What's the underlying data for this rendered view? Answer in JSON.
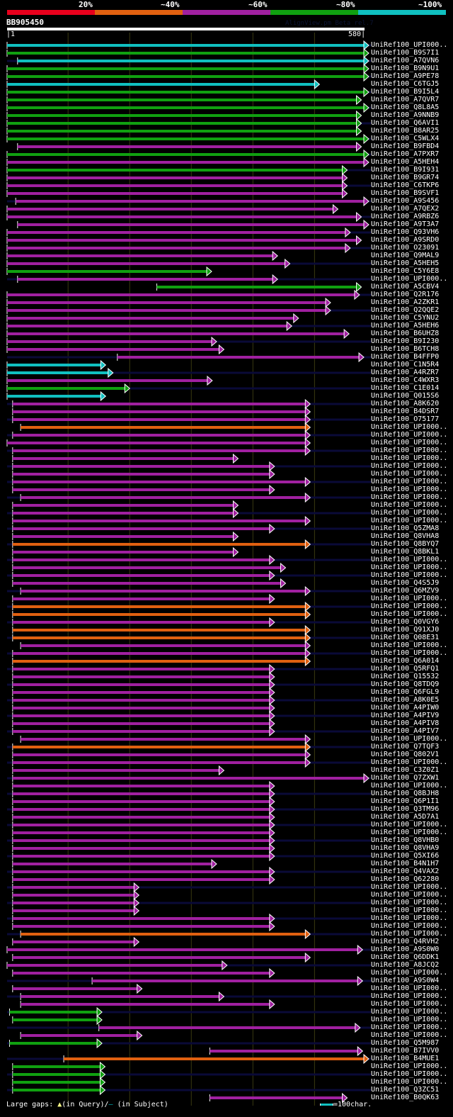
{
  "header": {
    "identity_legend": [
      {
        "label": "20%",
        "color": "#e8001c"
      },
      {
        "label": "~40%",
        "color": "#e06010"
      },
      {
        "label": "~60%",
        "color": "#a020a0"
      },
      {
        "label": "~80%",
        "color": "#10a010"
      },
      {
        "label": "~100%",
        "color": "#10c0c0"
      }
    ],
    "query_name": "BB905450",
    "credit": "AlignView.pm Beta rel.7",
    "query_start": "1",
    "query_end": "580"
  },
  "footer": {
    "gaps_prefix": "Large gaps:",
    "gap_query_symbol": "▲",
    "gap_query_text": "(in Query)/",
    "gap_subject_symbol": "–",
    "gap_subject_text": " (in Subject)",
    "scale_text": "=100char."
  },
  "chart_data": {
    "type": "alignment-overview",
    "title": "BB905450",
    "xlabel": "Query position",
    "xlim": [
      1,
      580
    ],
    "gridlines": [
      100,
      200,
      300,
      400,
      500
    ],
    "color_bins": {
      "r": "20%",
      "o": "~40%",
      "p": "~60%",
      "g": "~80%",
      "c": "~100%"
    },
    "hits": [
      {
        "name": "UniRef100_UPI000..",
        "start": 1,
        "end": 580,
        "id": "c"
      },
      {
        "name": "UniRef100_B9S7I1",
        "start": 1,
        "end": 580,
        "id": "g"
      },
      {
        "name": "UniRef100_A7QVN6",
        "start": 18,
        "end": 580,
        "id": "c"
      },
      {
        "name": "UniRef100_B9N9U1",
        "start": 1,
        "end": 580,
        "id": "g"
      },
      {
        "name": "UniRef100_A9PE78",
        "start": 1,
        "end": 580,
        "id": "g"
      },
      {
        "name": "UniRef100_C6TGJ5",
        "start": 1,
        "end": 500,
        "id": "c"
      },
      {
        "name": "UniRef100_B9I5L4",
        "start": 1,
        "end": 580,
        "id": "g"
      },
      {
        "name": "UniRef100_A7QVR7",
        "start": 1,
        "end": 568,
        "id": "g"
      },
      {
        "name": "UniRef100_Q8L8A5",
        "start": 1,
        "end": 580,
        "id": "g"
      },
      {
        "name": "UniRef100_A9NNB9",
        "start": 1,
        "end": 568,
        "id": "g"
      },
      {
        "name": "UniRef100_Q6AVI1",
        "start": 1,
        "end": 568,
        "id": "g"
      },
      {
        "name": "UniRef100_B8AR25",
        "start": 1,
        "end": 568,
        "id": "g"
      },
      {
        "name": "UniRef100_C5WLX4",
        "start": 1,
        "end": 580,
        "id": "g"
      },
      {
        "name": "UniRef100_B9FBD4",
        "start": 18,
        "end": 568,
        "id": "p"
      },
      {
        "name": "UniRef100_A7PXR7",
        "start": 1,
        "end": 580,
        "id": "g"
      },
      {
        "name": "UniRef100_A5HEH4",
        "start": 1,
        "end": 580,
        "id": "p"
      },
      {
        "name": "UniRef100_B9I931",
        "start": 1,
        "end": 545,
        "id": "g"
      },
      {
        "name": "UniRef100_B9GR74",
        "start": 1,
        "end": 545,
        "id": "p"
      },
      {
        "name": "UniRef100_C6TKP6",
        "start": 1,
        "end": 545,
        "id": "p"
      },
      {
        "name": "UniRef100_B9SVF1",
        "start": 1,
        "end": 545,
        "id": "p"
      },
      {
        "name": "UniRef100_A9S456",
        "start": 15,
        "end": 580,
        "id": "p"
      },
      {
        "name": "UniRef100_A7QEX2",
        "start": 1,
        "end": 530,
        "id": "p"
      },
      {
        "name": "UniRef100_A9RBZ6",
        "start": 1,
        "end": 568,
        "id": "p"
      },
      {
        "name": "UniRef100_A9T3A7",
        "start": 18,
        "end": 580,
        "id": "p"
      },
      {
        "name": "UniRef100_Q93VH6",
        "start": 1,
        "end": 550,
        "id": "p"
      },
      {
        "name": "UniRef100_A9SRD0",
        "start": 1,
        "end": 568,
        "id": "p"
      },
      {
        "name": "UniRef100_O23091",
        "start": 1,
        "end": 550,
        "id": "p"
      },
      {
        "name": "UniRef100_Q9MAL9",
        "start": 1,
        "end": 432,
        "id": "p"
      },
      {
        "name": "UniRef100_A5HEH5",
        "start": 1,
        "end": 452,
        "id": "p"
      },
      {
        "name": "UniRef100_C5Y6E8",
        "start": 1,
        "end": 325,
        "id": "g"
      },
      {
        "name": "UniRef100_UPI000..",
        "start": 18,
        "end": 432,
        "id": "p"
      },
      {
        "name": "UniRef100_A5CBV4",
        "start": 244,
        "end": 568,
        "id": "g"
      },
      {
        "name": "UniRef100_Q2R176",
        "start": 1,
        "end": 565,
        "id": "p"
      },
      {
        "name": "UniRef100_A2ZKR1",
        "start": 1,
        "end": 518,
        "id": "p"
      },
      {
        "name": "UniRef100_Q2QQE2",
        "start": 1,
        "end": 518,
        "id": "p"
      },
      {
        "name": "UniRef100_C5YNU2",
        "start": 1,
        "end": 466,
        "id": "p"
      },
      {
        "name": "UniRef100_A5HEH6",
        "start": 1,
        "end": 455,
        "id": "p"
      },
      {
        "name": "UniRef100_B6UHZ8",
        "start": 1,
        "end": 548,
        "id": "p"
      },
      {
        "name": "UniRef100_B9I230",
        "start": 1,
        "end": 333,
        "id": "p"
      },
      {
        "name": "UniRef100_B6TCH8",
        "start": 1,
        "end": 345,
        "id": "p"
      },
      {
        "name": "UniRef100_B4FFP0",
        "start": 180,
        "end": 572,
        "id": "p"
      },
      {
        "name": "UniRef100_C1N5R4",
        "start": 1,
        "end": 153,
        "id": "c"
      },
      {
        "name": "UniRef100_A4RZR7",
        "start": 1,
        "end": 165,
        "id": "c"
      },
      {
        "name": "UniRef100_C4WXR3",
        "start": 1,
        "end": 326,
        "id": "p"
      },
      {
        "name": "UniRef100_C1E014",
        "start": 1,
        "end": 192,
        "id": "g"
      },
      {
        "name": "UniRef100_Q015S6",
        "start": 1,
        "end": 153,
        "id": "c"
      },
      {
        "name": "UniRef100_A8K620",
        "start": 10,
        "end": 485,
        "id": "p"
      },
      {
        "name": "UniRef100_B4DSR7",
        "start": 10,
        "end": 485,
        "id": "p"
      },
      {
        "name": "UniRef100_O75177",
        "start": 10,
        "end": 485,
        "id": "p"
      },
      {
        "name": "UniRef100_UPI000..",
        "start": 23,
        "end": 485,
        "id": "o"
      },
      {
        "name": "UniRef100_UPI000..",
        "start": 10,
        "end": 485,
        "id": "p"
      },
      {
        "name": "UniRef100_UPI000..",
        "start": 1,
        "end": 485,
        "id": "p"
      },
      {
        "name": "UniRef100_UPI000..",
        "start": 10,
        "end": 485,
        "id": "p"
      },
      {
        "name": "UniRef100_UPI000..",
        "start": 10,
        "end": 368,
        "id": "p"
      },
      {
        "name": "UniRef100_UPI000..",
        "start": 10,
        "end": 427,
        "id": "p"
      },
      {
        "name": "UniRef100_UPI000..",
        "start": 10,
        "end": 427,
        "id": "p"
      },
      {
        "name": "UniRef100_UPI000..",
        "start": 10,
        "end": 485,
        "id": "p"
      },
      {
        "name": "UniRef100_UPI000..",
        "start": 10,
        "end": 427,
        "id": "p"
      },
      {
        "name": "UniRef100_UPI000..",
        "start": 23,
        "end": 485,
        "id": "p"
      },
      {
        "name": "UniRef100_UPI000..",
        "start": 10,
        "end": 368,
        "id": "p"
      },
      {
        "name": "UniRef100_UPI000..",
        "start": 10,
        "end": 368,
        "id": "p"
      },
      {
        "name": "UniRef100_UPI000..",
        "start": 10,
        "end": 485,
        "id": "p"
      },
      {
        "name": "UniRef100_Q5ZMA8",
        "start": 10,
        "end": 427,
        "id": "p"
      },
      {
        "name": "UniRef100_Q8VHA8",
        "start": 10,
        "end": 368,
        "id": "p"
      },
      {
        "name": "UniRef100_Q8BYQ7",
        "start": 10,
        "end": 485,
        "id": "o"
      },
      {
        "name": "UniRef100_Q8BKL1",
        "start": 10,
        "end": 368,
        "id": "p"
      },
      {
        "name": "UniRef100_UPI000..",
        "start": 10,
        "end": 427,
        "id": "p"
      },
      {
        "name": "UniRef100_UPI000..",
        "start": 10,
        "end": 445,
        "id": "p"
      },
      {
        "name": "UniRef100_UPI000..",
        "start": 10,
        "end": 427,
        "id": "p"
      },
      {
        "name": "UniRef100_Q4S5J9",
        "start": 10,
        "end": 445,
        "id": "p"
      },
      {
        "name": "UniRef100_Q6MZV9",
        "start": 23,
        "end": 485,
        "id": "p"
      },
      {
        "name": "UniRef100_UPI000..",
        "start": 10,
        "end": 427,
        "id": "p"
      },
      {
        "name": "UniRef100_UPI000..",
        "start": 10,
        "end": 485,
        "id": "o"
      },
      {
        "name": "UniRef100_UPI000..",
        "start": 10,
        "end": 485,
        "id": "o"
      },
      {
        "name": "UniRef100_Q0VGY6",
        "start": 10,
        "end": 427,
        "id": "p"
      },
      {
        "name": "UniRef100_Q91XJ0",
        "start": 10,
        "end": 485,
        "id": "o"
      },
      {
        "name": "UniRef100_Q08E31",
        "start": 10,
        "end": 485,
        "id": "o"
      },
      {
        "name": "UniRef100_UPI000..",
        "start": 23,
        "end": 485,
        "id": "p"
      },
      {
        "name": "UniRef100_UPI000..",
        "start": 10,
        "end": 485,
        "id": "p"
      },
      {
        "name": "UniRef100_Q6A014",
        "start": 10,
        "end": 485,
        "id": "o"
      },
      {
        "name": "UniRef100_Q5RFQ1",
        "start": 10,
        "end": 427,
        "id": "p"
      },
      {
        "name": "UniRef100_Q15532",
        "start": 10,
        "end": 427,
        "id": "p"
      },
      {
        "name": "UniRef100_Q8TDQ9",
        "start": 10,
        "end": 427,
        "id": "p"
      },
      {
        "name": "UniRef100_Q6FGL9",
        "start": 10,
        "end": 427,
        "id": "p"
      },
      {
        "name": "UniRef100_A8K0E5",
        "start": 10,
        "end": 427,
        "id": "p"
      },
      {
        "name": "UniRef100_A4PIW0",
        "start": 10,
        "end": 427,
        "id": "p"
      },
      {
        "name": "UniRef100_A4PIV9",
        "start": 10,
        "end": 427,
        "id": "p"
      },
      {
        "name": "UniRef100_A4PIV8",
        "start": 10,
        "end": 427,
        "id": "p"
      },
      {
        "name": "UniRef100_A4PIV7",
        "start": 10,
        "end": 427,
        "id": "p"
      },
      {
        "name": "UniRef100_UPI000..",
        "start": 23,
        "end": 485,
        "id": "p"
      },
      {
        "name": "UniRef100_Q7TQF3",
        "start": 10,
        "end": 485,
        "id": "o"
      },
      {
        "name": "UniRef100_Q802V1",
        "start": 10,
        "end": 485,
        "id": "p"
      },
      {
        "name": "UniRef100_UPI000..",
        "start": 10,
        "end": 485,
        "id": "p"
      },
      {
        "name": "UniRef100_C3Z0Z1",
        "start": 10,
        "end": 345,
        "id": "p"
      },
      {
        "name": "UniRef100_Q7ZXW1",
        "start": 10,
        "end": 580,
        "id": "p"
      },
      {
        "name": "UniRef100_UPI000..",
        "start": 10,
        "end": 427,
        "id": "p"
      },
      {
        "name": "UniRef100_Q8BJH8",
        "start": 10,
        "end": 427,
        "id": "p"
      },
      {
        "name": "UniRef100_Q6P1I1",
        "start": 10,
        "end": 427,
        "id": "p"
      },
      {
        "name": "UniRef100_Q3TM96",
        "start": 10,
        "end": 427,
        "id": "p"
      },
      {
        "name": "UniRef100_A5D7A1",
        "start": 10,
        "end": 427,
        "id": "p"
      },
      {
        "name": "UniRef100_UPI000..",
        "start": 10,
        "end": 427,
        "id": "p"
      },
      {
        "name": "UniRef100_UPI000..",
        "start": 10,
        "end": 427,
        "id": "p"
      },
      {
        "name": "UniRef100_Q8VHB0",
        "start": 10,
        "end": 427,
        "id": "p"
      },
      {
        "name": "UniRef100_Q8VHA9",
        "start": 10,
        "end": 427,
        "id": "p"
      },
      {
        "name": "UniRef100_Q5XI66",
        "start": 10,
        "end": 427,
        "id": "p"
      },
      {
        "name": "UniRef100_B4N1H7",
        "start": 10,
        "end": 333,
        "id": "p"
      },
      {
        "name": "UniRef100_Q4VAX2",
        "start": 10,
        "end": 427,
        "id": "p"
      },
      {
        "name": "UniRef100_Q62280",
        "start": 10,
        "end": 427,
        "id": "p"
      },
      {
        "name": "UniRef100_UPI000..",
        "start": 10,
        "end": 207,
        "id": "p"
      },
      {
        "name": "UniRef100_UPI000..",
        "start": 10,
        "end": 207,
        "id": "p"
      },
      {
        "name": "UniRef100_UPI000..",
        "start": 10,
        "end": 207,
        "id": "p"
      },
      {
        "name": "UniRef100_UPI000..",
        "start": 10,
        "end": 207,
        "id": "p"
      },
      {
        "name": "UniRef100_UPI000..",
        "start": 10,
        "end": 427,
        "id": "p"
      },
      {
        "name": "UniRef100_UPI000..",
        "start": 10,
        "end": 427,
        "id": "p"
      },
      {
        "name": "UniRef100_UPI000..",
        "start": 23,
        "end": 485,
        "id": "o"
      },
      {
        "name": "UniRef100_Q4RVH2",
        "start": 10,
        "end": 207,
        "id": "p"
      },
      {
        "name": "UniRef100_A9S0W0",
        "start": 1,
        "end": 570,
        "id": "p"
      },
      {
        "name": "UniRef100_Q6DDK1",
        "start": 10,
        "end": 485,
        "id": "p"
      },
      {
        "name": "UniRef100_A8JCQ2",
        "start": 1,
        "end": 350,
        "id": "p"
      },
      {
        "name": "UniRef100_UPI000..",
        "start": 10,
        "end": 427,
        "id": "p"
      },
      {
        "name": "UniRef100_A9S0W4",
        "start": 139,
        "end": 570,
        "id": "p"
      },
      {
        "name": "UniRef100_UPI000..",
        "start": 10,
        "end": 212,
        "id": "p"
      },
      {
        "name": "UniRef100_UPI000..",
        "start": 23,
        "end": 345,
        "id": "p"
      },
      {
        "name": "UniRef100_UPI000..",
        "start": 23,
        "end": 427,
        "id": "p"
      },
      {
        "name": "UniRef100_UPI000..",
        "start": 5,
        "end": 147,
        "id": "g"
      },
      {
        "name": "UniRef100_UPI000..",
        "start": 10,
        "end": 147,
        "id": "g"
      },
      {
        "name": "UniRef100_UPI000..",
        "start": 150,
        "end": 566,
        "id": "p"
      },
      {
        "name": "UniRef100_UPI000..",
        "start": 23,
        "end": 212,
        "id": "p"
      },
      {
        "name": "UniRef100_Q5M987",
        "start": 5,
        "end": 147,
        "id": "g"
      },
      {
        "name": "UniRef100_B7IVV0",
        "start": 330,
        "end": 570,
        "id": "p"
      },
      {
        "name": "UniRef100_B4MUE1",
        "start": 93,
        "end": 580,
        "id": "o"
      },
      {
        "name": "UniRef100_UPI000..",
        "start": 10,
        "end": 152,
        "id": "g"
      },
      {
        "name": "UniRef100_UPI000..",
        "start": 10,
        "end": 152,
        "id": "g"
      },
      {
        "name": "UniRef100_UPI000..",
        "start": 10,
        "end": 152,
        "id": "g"
      },
      {
        "name": "UniRef100_Q3ZC51",
        "start": 10,
        "end": 152,
        "id": "g"
      },
      {
        "name": "UniRef100_B0QK63",
        "start": 330,
        "end": 545,
        "id": "p"
      }
    ]
  }
}
